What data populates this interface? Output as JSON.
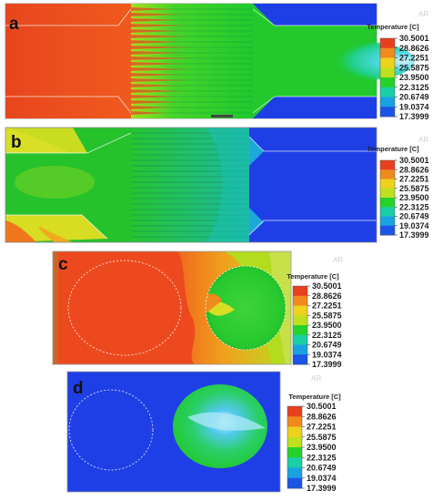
{
  "panels": [
    {
      "label": "a"
    },
    {
      "label": "b"
    },
    {
      "label": "c"
    },
    {
      "label": "d"
    }
  ],
  "colorbar": {
    "title": "Temperature [C]",
    "ticks": [
      "30.5001",
      "28.8626",
      "27.2251",
      "25.5875",
      "23.9500",
      "22.3125",
      "20.6749",
      "19.0374",
      "17.3999"
    ],
    "colors": [
      "#e8401e",
      "#f08a1e",
      "#eed21e",
      "#bfe01e",
      "#26d22a",
      "#18cfa6",
      "#1aa2e0",
      "#1b55e6"
    ]
  },
  "watermark": "AR",
  "colors": {
    "hot": "#ec4a1e",
    "green": "#26cc26",
    "blue": "#1f3fe6",
    "cyan": "#31d6e2",
    "yellow": "#dfe02a"
  }
}
